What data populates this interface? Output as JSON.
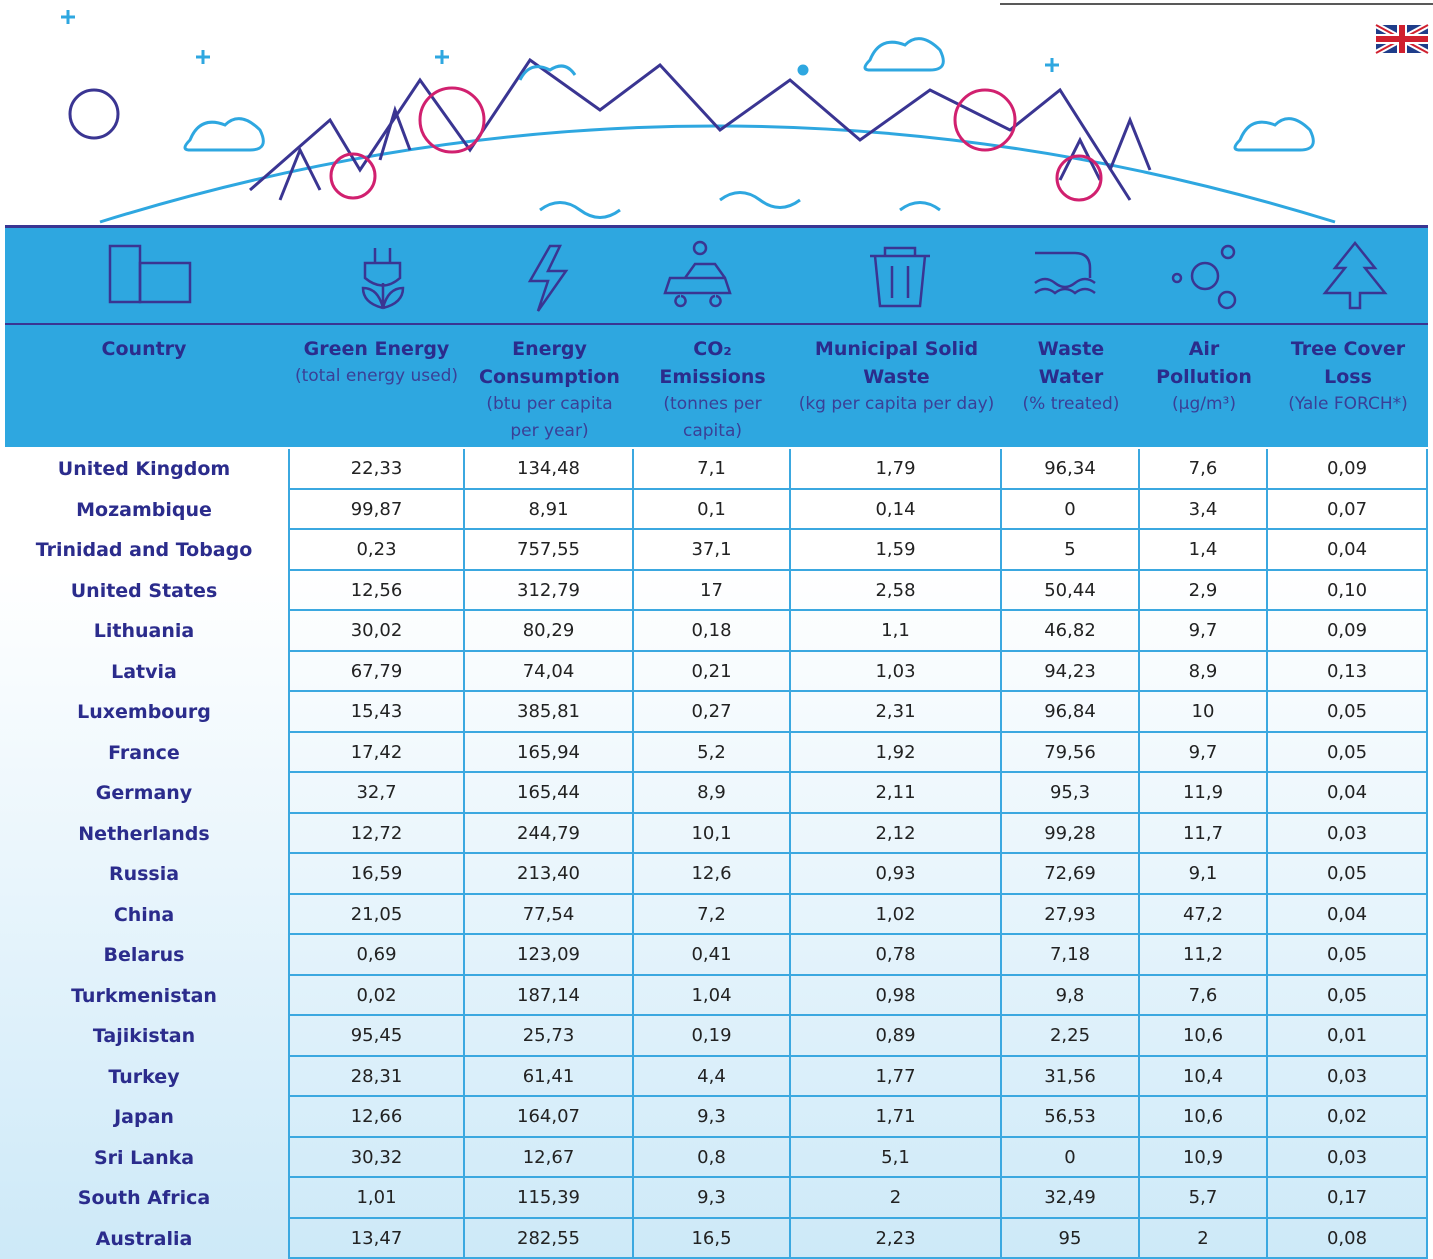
{
  "header": {
    "columns": [
      {
        "title": "Country"
      },
      {
        "title": "Green Energy",
        "unit": "(total energy used)"
      },
      {
        "title": "Energy Consumption",
        "unit": "(btu per capita per year)"
      },
      {
        "title": "CO₂ Emissions",
        "unit": "(tonnes per capita)"
      },
      {
        "title": "Municipal Solid Waste",
        "unit": "(kg per capita per day)"
      },
      {
        "title": "Waste Water",
        "unit": "(% treated)"
      },
      {
        "title": "Air Pollution",
        "unit": "(µg/m³)"
      },
      {
        "title": "Tree Cover Loss",
        "unit": "(Yale FORCH*)"
      }
    ]
  },
  "table": {
    "rows": [
      [
        "United Kingdom",
        "22,33",
        "134,48",
        "7,1",
        "1,79",
        "96,34",
        "7,6",
        "0,09"
      ],
      [
        "Mozambique",
        "99,87",
        "8,91",
        "0,1",
        "0,14",
        "0",
        "3,4",
        "0,07"
      ],
      [
        "Trinidad and Tobago",
        "0,23",
        "757,55",
        "37,1",
        "1,59",
        "5",
        "1,4",
        "0,04"
      ],
      [
        "United States",
        "12,56",
        "312,79",
        "17",
        "2,58",
        "50,44",
        "2,9",
        "0,10"
      ],
      [
        "Lithuania",
        "30,02",
        "80,29",
        "0,18",
        "1,1",
        "46,82",
        "9,7",
        "0,09"
      ],
      [
        "Latvia",
        "67,79",
        "74,04",
        "0,21",
        "1,03",
        "94,23",
        "8,9",
        "0,13"
      ],
      [
        "Luxembourg",
        "15,43",
        "385,81",
        "0,27",
        "2,31",
        "96,84",
        "10",
        "0,05"
      ],
      [
        "France",
        "17,42",
        "165,94",
        "5,2",
        "1,92",
        "79,56",
        "9,7",
        "0,05"
      ],
      [
        "Germany",
        "32,7",
        "165,44",
        "8,9",
        "2,11",
        "95,3",
        "11,9",
        "0,04"
      ],
      [
        "Netherlands",
        "12,72",
        "244,79",
        "10,1",
        "2,12",
        "99,28",
        "11,7",
        "0,03"
      ],
      [
        "Russia",
        "16,59",
        "213,40",
        "12,6",
        "0,93",
        "72,69",
        "9,1",
        "0,05"
      ],
      [
        "China",
        "21,05",
        "77,54",
        "7,2",
        "1,02",
        "27,93",
        "47,2",
        "0,04"
      ],
      [
        "Belarus",
        "0,69",
        "123,09",
        "0,41",
        "0,78",
        "7,18",
        "11,2",
        "0,05"
      ],
      [
        "Turkmenistan",
        "0,02",
        "187,14",
        "1,04",
        "0,98",
        "9,8",
        "7,6",
        "0,05"
      ],
      [
        "Tajikistan",
        "95,45",
        "25,73",
        "0,19",
        "0,89",
        "2,25",
        "10,6",
        "0,01"
      ],
      [
        "Turkey",
        "28,31",
        "61,41",
        "4,4",
        "1,77",
        "31,56",
        "10,4",
        "0,03"
      ],
      [
        "Japan",
        "12,66",
        "164,07",
        "9,3",
        "1,71",
        "56,53",
        "10,6",
        "0,02"
      ],
      [
        "Sri Lanka",
        "30,32",
        "12,67",
        "0,8",
        "5,1",
        "0",
        "10,9",
        "0,03"
      ],
      [
        "South Africa",
        "1,01",
        "115,39",
        "9,3",
        "2",
        "32,49",
        "5,7",
        "0,17"
      ],
      [
        "Australia",
        "13,47",
        "282,55",
        "16,5",
        "2,23",
        "95",
        "2",
        "0,08"
      ]
    ]
  }
}
